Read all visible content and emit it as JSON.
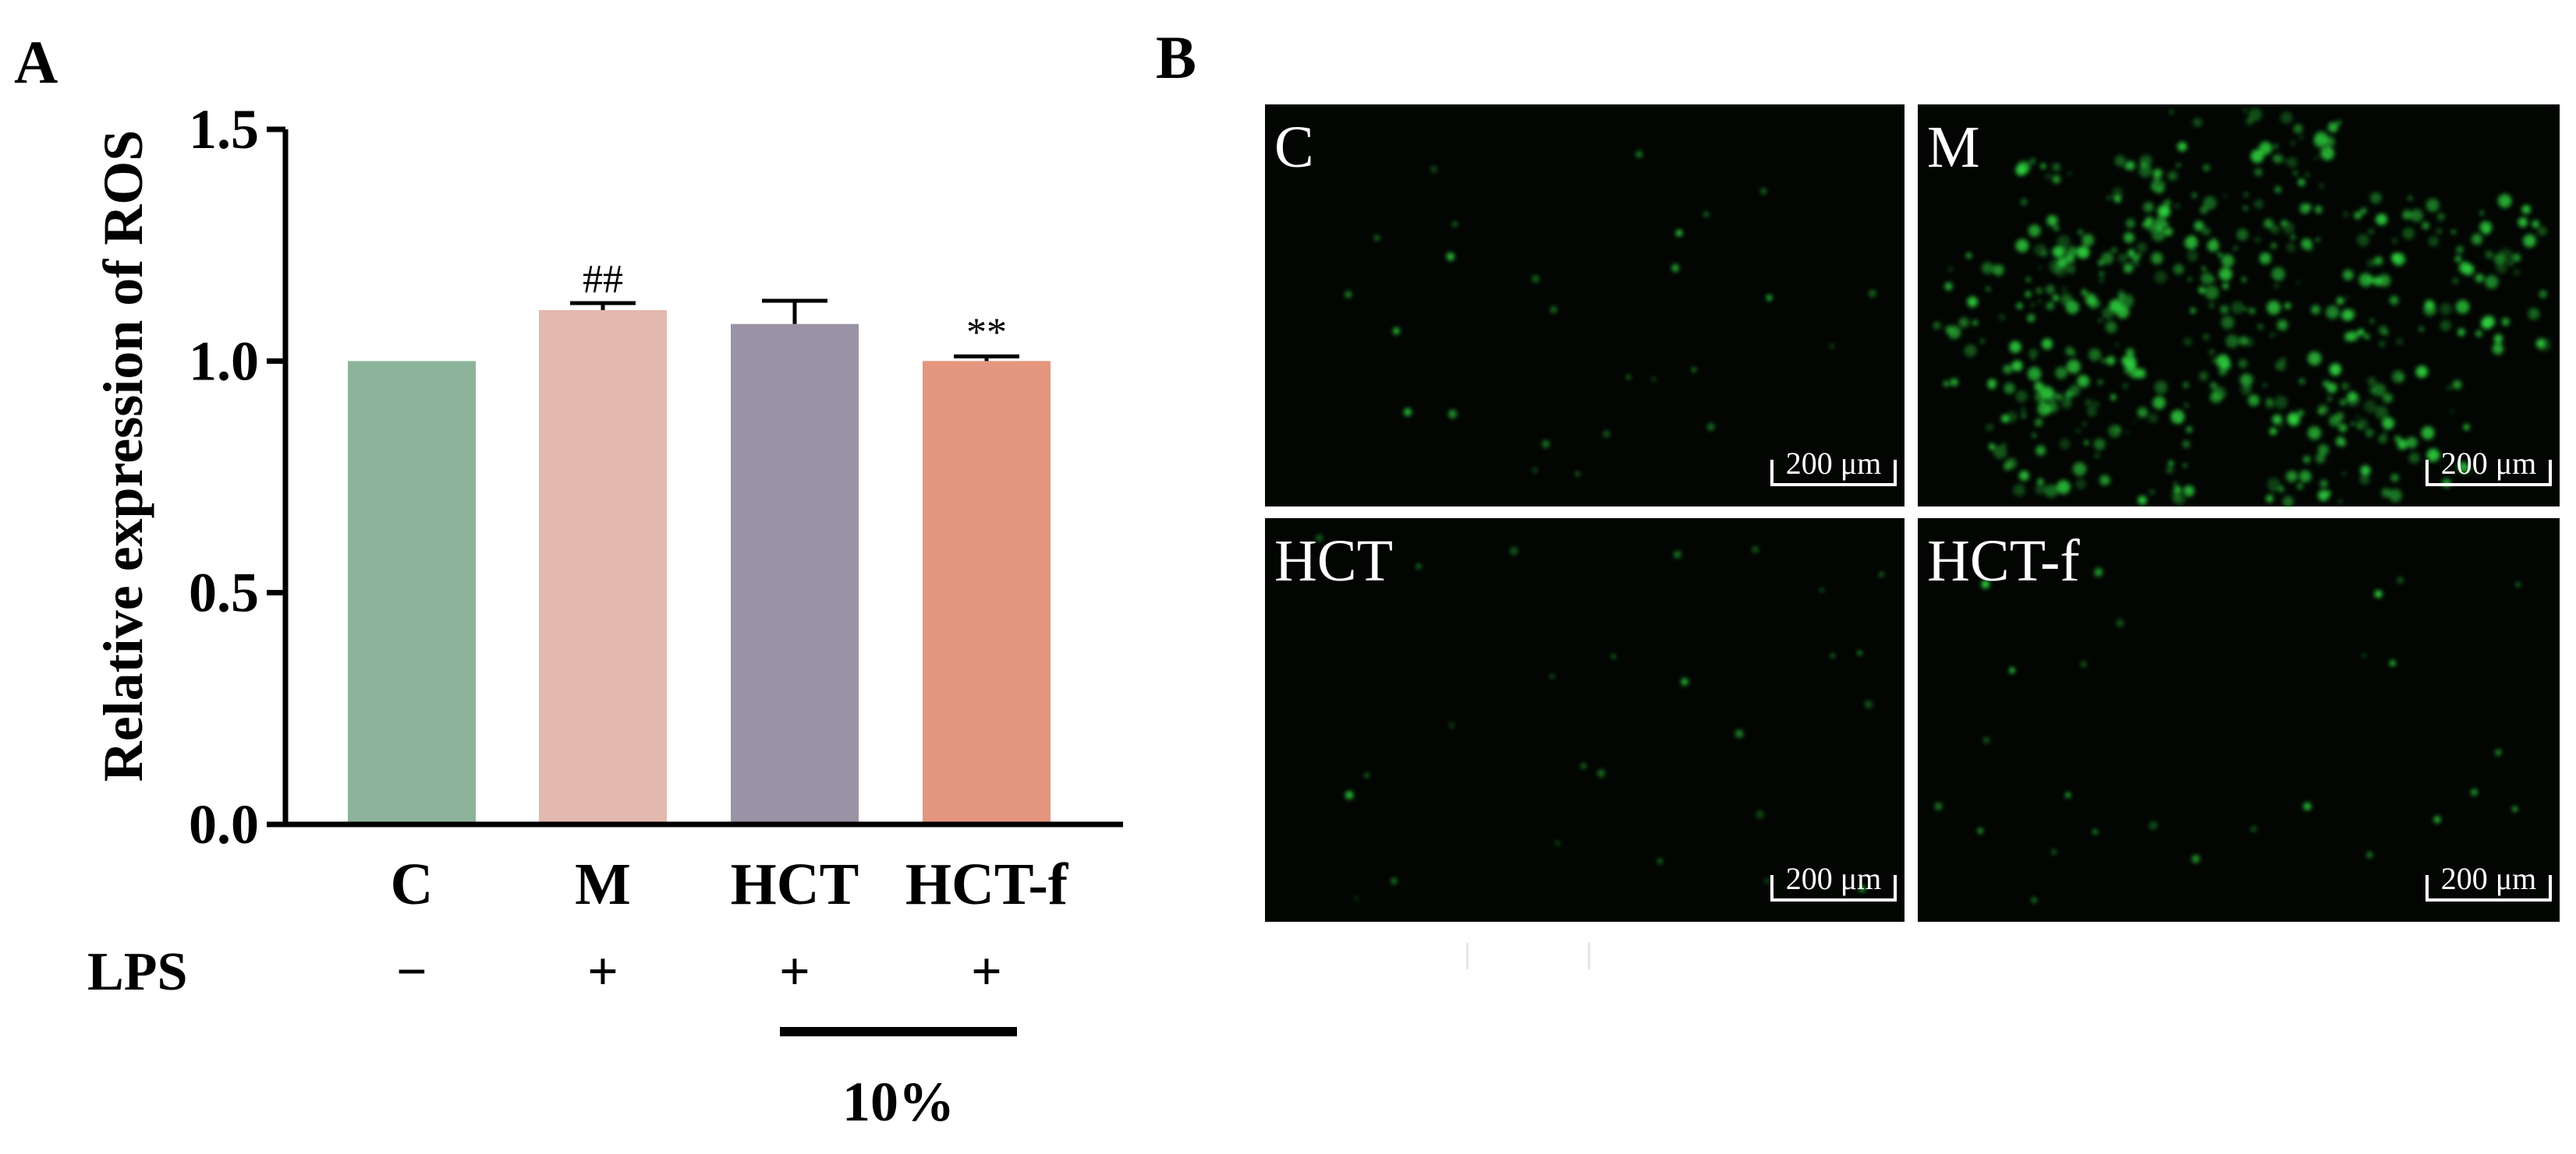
{
  "panels": {
    "a_label": "A",
    "b_label": "B"
  },
  "chart_data": {
    "type": "bar",
    "title": "",
    "xlabel": "",
    "ylabel": "Relative expression of ROS",
    "ylim": [
      0,
      1.5
    ],
    "yticks": [
      "0.0",
      "0.5",
      "1.0",
      "1.5"
    ],
    "categories": [
      "C",
      "M",
      "HCT",
      "HCT-f"
    ],
    "values": [
      1.0,
      1.11,
      1.08,
      1.0
    ],
    "errors": [
      0.0,
      0.015,
      0.05,
      0.01
    ],
    "significance": [
      "",
      "##",
      "",
      "**"
    ],
    "bar_colors": [
      "#8db49b",
      "#e3b8ae",
      "#9a93a6",
      "#e4967e"
    ],
    "grid": false,
    "legend": "none",
    "treatment_row": {
      "label": "LPS",
      "values": [
        "−",
        "+",
        "+",
        "+"
      ]
    },
    "concentration_label": "10%"
  },
  "micrographs": [
    {
      "label": "C",
      "scale_bar": "200 μm"
    },
    {
      "label": "M",
      "scale_bar": "200 μm"
    },
    {
      "label": "HCT",
      "scale_bar": "200 μm"
    },
    {
      "label": "HCT-f",
      "scale_bar": "200 μm"
    }
  ],
  "colors": {
    "axis": "#000000",
    "micrograph_background": "#020502",
    "fluorescence": "#2fd63f",
    "separator": "#ffffff"
  }
}
